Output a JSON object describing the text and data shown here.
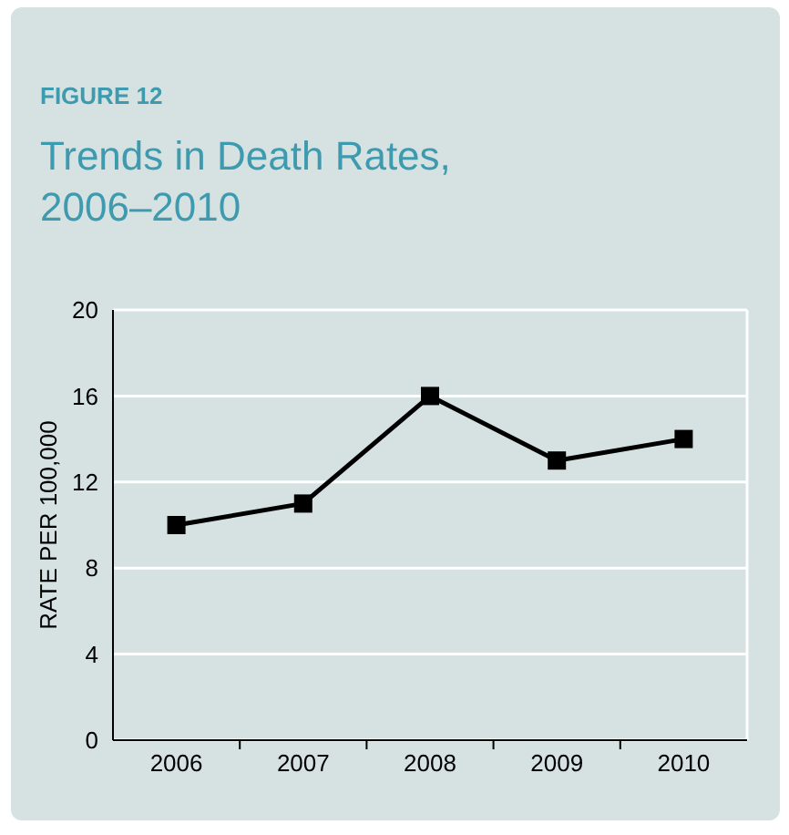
{
  "chart_data": {
    "type": "line",
    "title": "Trends in Death Rates,\n2006–2010",
    "subtitle": "FIGURE 12",
    "ylabel": "RATE PER 100,000",
    "categories": [
      "2006",
      "2007",
      "2008",
      "2009",
      "2010"
    ],
    "series": [
      {
        "color": "#000000",
        "values": [
          10,
          11,
          16,
          13,
          14
        ]
      }
    ],
    "ylim": [
      0,
      20
    ],
    "yticks": [
      0,
      4,
      8,
      12,
      16,
      20
    ],
    "grid": "y",
    "marker": "square",
    "line_style": "solid"
  }
}
